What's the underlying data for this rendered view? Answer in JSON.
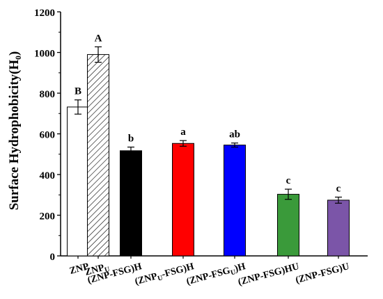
{
  "chart_data": {
    "type": "bar",
    "title": "",
    "xlabel": "",
    "ylabel": "Surface Hydrophobicity(H₀)",
    "ylim": [
      0,
      1200
    ],
    "yticks": [
      0,
      200,
      400,
      600,
      800,
      1000,
      1200
    ],
    "grid": false,
    "legend": "none",
    "categories": [
      {
        "main": "ZNP",
        "parts": [
          {
            "t": "ZNP"
          }
        ]
      },
      {
        "main": "ZNPU",
        "parts": [
          {
            "t": "ZNP"
          },
          {
            "t": "U",
            "sub": true
          }
        ]
      },
      {
        "main": "(ZNP-FSG)H",
        "parts": [
          {
            "t": "(ZNP-FSG)H"
          }
        ]
      },
      {
        "main": "(ZNPU-FSG)H",
        "parts": [
          {
            "t": "(ZNP"
          },
          {
            "t": "U",
            "sub": true
          },
          {
            "t": "-FSG)H"
          }
        ]
      },
      {
        "main": "(ZNP-FSGU)H",
        "parts": [
          {
            "t": "(ZNP-FSG"
          },
          {
            "t": "U",
            "sub": true
          },
          {
            "t": ")H"
          }
        ]
      },
      {
        "main": "(ZNP-FSG)HU",
        "parts": [
          {
            "t": "(ZNP-FSG)HU"
          }
        ]
      },
      {
        "main": "(ZNP-FSG)U",
        "parts": [
          {
            "t": "(ZNP-FSG)U"
          }
        ]
      }
    ],
    "values": [
      732,
      990,
      517,
      553,
      545,
      303,
      274
    ],
    "errors": [
      35,
      38,
      18,
      14,
      10,
      25,
      15
    ],
    "letters": [
      "B",
      "A",
      "b",
      "a",
      "ab",
      "c",
      "c"
    ],
    "colors": [
      "#ffffff",
      "hatch",
      "#000000",
      "#ff0000",
      "#0000ff",
      "#3a9a3a",
      "#7b55a8"
    ]
  }
}
